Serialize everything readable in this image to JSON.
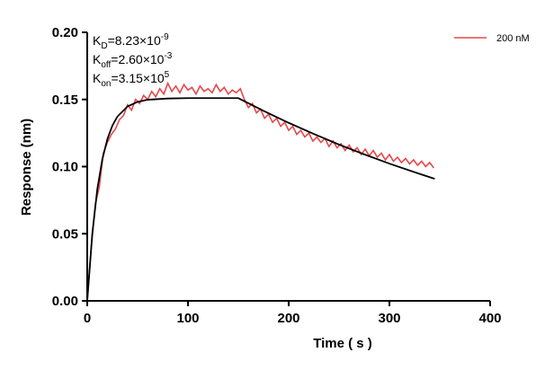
{
  "chart_data": {
    "type": "line",
    "xlabel": "Time ( s )",
    "ylabel": "Response (nm)",
    "xlim": [
      0,
      400
    ],
    "xticks": [
      0,
      100,
      200,
      300,
      400
    ],
    "ylim": [
      0,
      0.2
    ],
    "yticks": [
      {
        "value": 0,
        "label": "0.00"
      },
      {
        "value": 0.05,
        "label": "0.05"
      },
      {
        "value": 0.1,
        "label": "0.10"
      },
      {
        "value": 0.15,
        "label": "0.15"
      },
      {
        "value": 0.2,
        "label": "0.20"
      }
    ],
    "legend": "upper right",
    "annotations": [
      {
        "main": "K",
        "sub": "D",
        "rest": "=8.23×10",
        "sup": "-9"
      },
      {
        "main": "K",
        "sub": "off",
        "rest": "=2.60×10",
        "sup": "-3"
      },
      {
        "main": "K",
        "sub": "on",
        "rest": "=3.15×10",
        "sup": "5"
      }
    ],
    "series": [
      {
        "name": "200 nM",
        "color": "#e8474c",
        "x": [
          0,
          4,
          8,
          12,
          16,
          20,
          24,
          28,
          32,
          36,
          40,
          44,
          48,
          52,
          56,
          60,
          64,
          68,
          72,
          76,
          80,
          84,
          88,
          92,
          96,
          100,
          104,
          108,
          112,
          116,
          120,
          124,
          128,
          132,
          136,
          140,
          144,
          148,
          152,
          156,
          160,
          164,
          168,
          172,
          176,
          180,
          184,
          188,
          192,
          196,
          200,
          204,
          208,
          212,
          216,
          220,
          224,
          228,
          232,
          236,
          240,
          244,
          248,
          252,
          256,
          260,
          264,
          268,
          272,
          276,
          280,
          284,
          288,
          292,
          296,
          300,
          304,
          308,
          312,
          316,
          320,
          324,
          328,
          332,
          336,
          340,
          344
        ],
        "values": [
          0.0,
          0.04,
          0.072,
          0.085,
          0.11,
          0.118,
          0.124,
          0.128,
          0.135,
          0.138,
          0.146,
          0.142,
          0.15,
          0.147,
          0.153,
          0.15,
          0.156,
          0.152,
          0.158,
          0.154,
          0.162,
          0.156,
          0.16,
          0.155,
          0.161,
          0.157,
          0.159,
          0.154,
          0.16,
          0.156,
          0.158,
          0.155,
          0.161,
          0.156,
          0.159,
          0.154,
          0.157,
          0.155,
          0.158,
          0.15,
          0.144,
          0.147,
          0.14,
          0.143,
          0.136,
          0.139,
          0.133,
          0.136,
          0.13,
          0.133,
          0.127,
          0.13,
          0.124,
          0.127,
          0.122,
          0.125,
          0.119,
          0.122,
          0.118,
          0.121,
          0.115,
          0.119,
          0.114,
          0.117,
          0.112,
          0.116,
          0.111,
          0.114,
          0.109,
          0.113,
          0.108,
          0.112,
          0.107,
          0.11,
          0.105,
          0.109,
          0.104,
          0.107,
          0.103,
          0.106,
          0.102,
          0.105,
          0.101,
          0.104,
          0.1,
          0.103,
          0.099
        ]
      },
      {
        "color": "#000000",
        "x": [
          0,
          5,
          10,
          15,
          20,
          25,
          30,
          40,
          50,
          60,
          80,
          100,
          120,
          150,
          175,
          200,
          225,
          250,
          275,
          300,
          325,
          345
        ],
        "values": [
          0,
          0.0498,
          0.0832,
          0.1055,
          0.1205,
          0.1306,
          0.1373,
          0.1448,
          0.1482,
          0.1498,
          0.1507,
          0.151,
          0.151,
          0.151,
          0.1415,
          0.1326,
          0.1243,
          0.1164,
          0.1091,
          0.1022,
          0.0958,
          0.0909
        ]
      }
    ]
  }
}
